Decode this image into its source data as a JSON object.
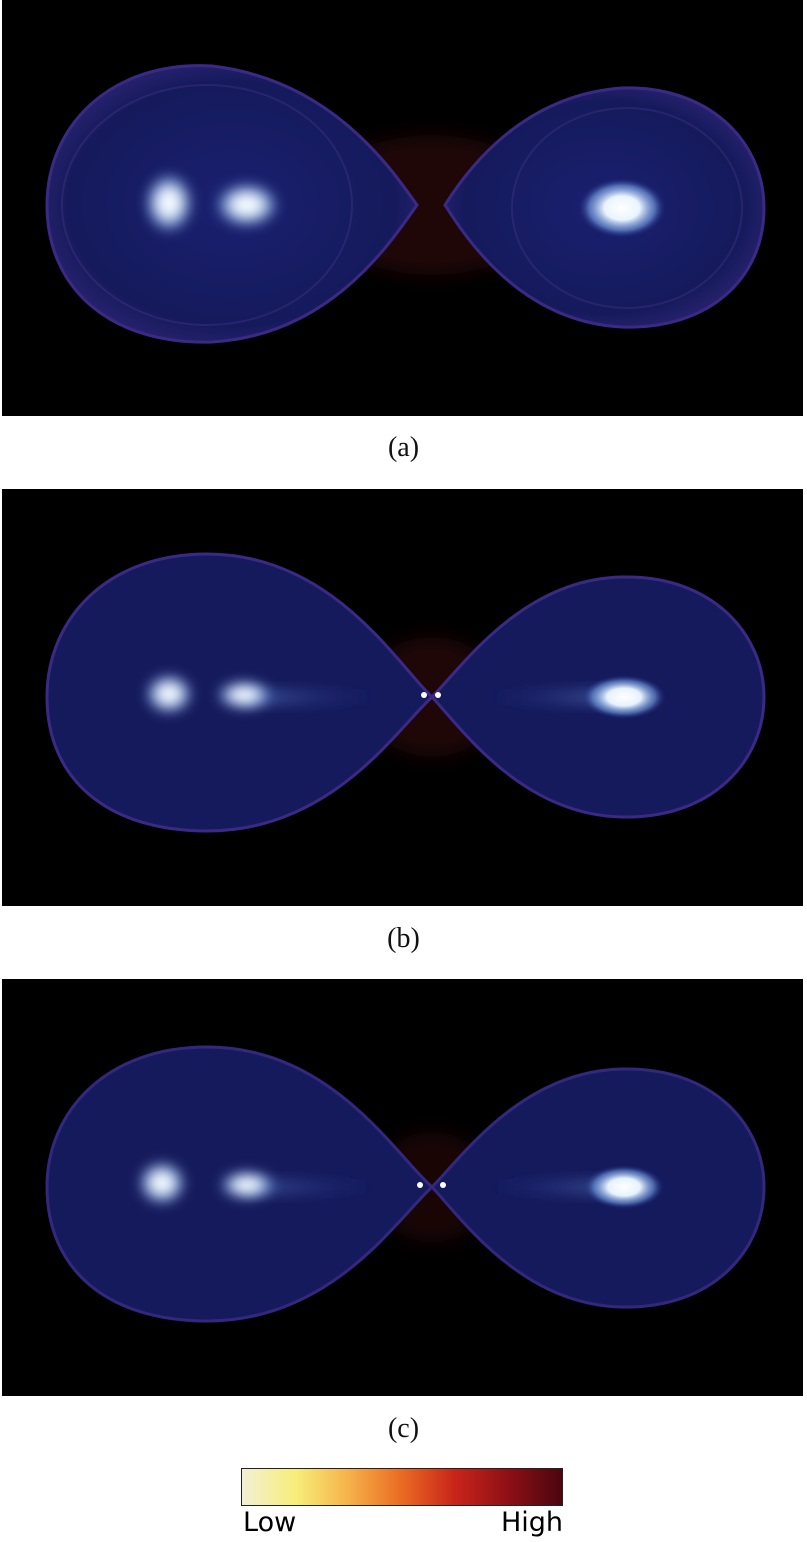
{
  "panels": [
    {
      "caption": "(a)",
      "variant": "separated"
    },
    {
      "caption": "(b)",
      "variant": "contact"
    },
    {
      "caption": "(c)",
      "variant": "contact"
    }
  ],
  "colorbar": {
    "low_label": "Low",
    "high_label": "High",
    "stops": [
      "#f2f0d4",
      "#f7ee7a",
      "#f5b24a",
      "#ea6a22",
      "#c8241a",
      "#8e0f16",
      "#4a0610"
    ]
  },
  "colors": {
    "background": "#000000",
    "body_fill": "#14185a",
    "rim": "#3a2a86",
    "bridge": "#3a0808",
    "hotspot": "#ffffff"
  }
}
